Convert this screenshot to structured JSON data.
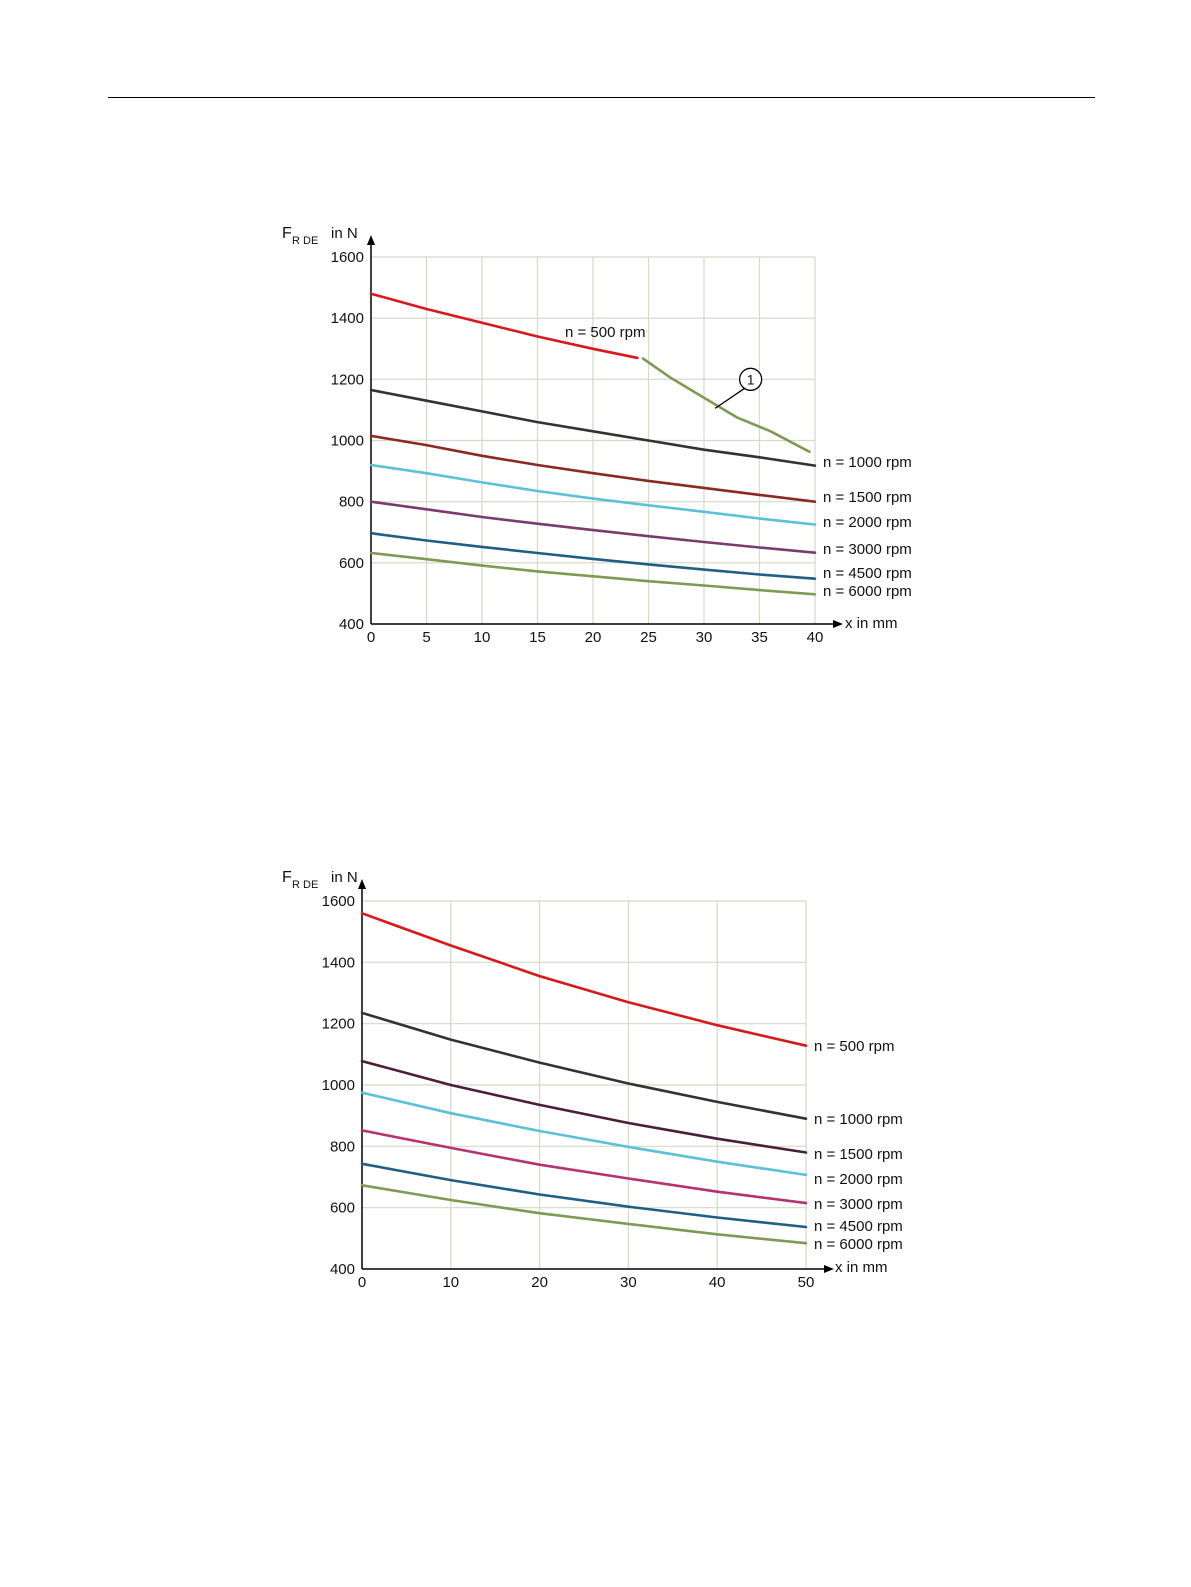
{
  "chart_data": [
    {
      "type": "line",
      "ylabel_main": "F",
      "ylabel_sub": "R DE",
      "ylabel_unit": "in N",
      "xlabel": "x in mm",
      "xlim": [
        0,
        40
      ],
      "ylim": [
        400,
        1600
      ],
      "x_ticks": [
        0,
        5,
        10,
        15,
        20,
        25,
        30,
        35,
        40
      ],
      "y_ticks": [
        400,
        600,
        800,
        1000,
        1200,
        1400,
        1600
      ],
      "grid": true,
      "series": [
        {
          "name": "n = 500 rpm",
          "color": "#d7191c",
          "label_pos": "inline",
          "x": [
            0,
            5,
            10,
            15,
            20,
            24
          ],
          "y": [
            1480,
            1430,
            1385,
            1340,
            1300,
            1270
          ]
        },
        {
          "name": "n = 1000 rpm",
          "color": "#333333",
          "label_pos": "end",
          "x": [
            0,
            5,
            10,
            15,
            20,
            25,
            30,
            35,
            40
          ],
          "y": [
            1165,
            1130,
            1095,
            1060,
            1030,
            1000,
            970,
            945,
            918
          ]
        },
        {
          "name": "n = 1500 rpm",
          "color": "#8b2a22",
          "label_pos": "end",
          "x": [
            0,
            5,
            10,
            15,
            20,
            25,
            30,
            35,
            40
          ],
          "y": [
            1015,
            985,
            950,
            920,
            893,
            868,
            845,
            822,
            800
          ]
        },
        {
          "name": "n = 2000 rpm",
          "color": "#5bc0d8",
          "label_pos": "end",
          "x": [
            0,
            5,
            10,
            15,
            20,
            25,
            30,
            35,
            40
          ],
          "y": [
            920,
            893,
            863,
            835,
            810,
            788,
            767,
            745,
            725
          ]
        },
        {
          "name": "n = 3000 rpm",
          "color": "#7a3b6e",
          "label_pos": "end",
          "x": [
            0,
            5,
            10,
            15,
            20,
            25,
            30,
            35,
            40
          ],
          "y": [
            800,
            775,
            750,
            728,
            707,
            687,
            668,
            650,
            633
          ]
        },
        {
          "name": "n = 4500 rpm",
          "color": "#1f5f86",
          "label_pos": "end",
          "x": [
            0,
            5,
            10,
            15,
            20,
            25,
            30,
            35,
            40
          ],
          "y": [
            697,
            673,
            652,
            632,
            613,
            595,
            578,
            562,
            548
          ]
        },
        {
          "name": "n = 6000 rpm",
          "color": "#7f9a55",
          "label_pos": "end",
          "x": [
            0,
            5,
            10,
            15,
            20,
            25,
            30,
            35,
            40
          ],
          "y": [
            632,
            612,
            591,
            572,
            556,
            540,
            526,
            511,
            497
          ]
        },
        {
          "name": "",
          "color": "#7f9a55",
          "label_pos": "none",
          "x": [
            24.5,
            27,
            30,
            33,
            36,
            39.5
          ],
          "y": [
            1268,
            1205,
            1140,
            1075,
            1030,
            963
          ]
        }
      ],
      "annotations": [
        {
          "text": "1",
          "x": 34.2,
          "y": 1200,
          "target_x": 31,
          "target_y": 1105
        }
      ]
    },
    {
      "type": "line",
      "ylabel_main": "F",
      "ylabel_sub": "R DE",
      "ylabel_unit": "in N",
      "xlabel": "x in mm",
      "xlim": [
        0,
        50
      ],
      "ylim": [
        400,
        1600
      ],
      "x_ticks": [
        0,
        10,
        20,
        30,
        40,
        50
      ],
      "y_ticks": [
        400,
        600,
        800,
        1000,
        1200,
        1400,
        1600
      ],
      "grid": true,
      "series": [
        {
          "name": "n = 500 rpm",
          "color": "#d7191c",
          "label_pos": "end",
          "x": [
            0,
            10,
            20,
            30,
            40,
            50
          ],
          "y": [
            1560,
            1455,
            1355,
            1270,
            1195,
            1128
          ]
        },
        {
          "name": "n = 1000 rpm",
          "color": "#333333",
          "label_pos": "end",
          "x": [
            0,
            10,
            20,
            30,
            40,
            50
          ],
          "y": [
            1235,
            1148,
            1073,
            1005,
            945,
            890
          ]
        },
        {
          "name": "n = 1500 rpm",
          "color": "#4a1f3a",
          "label_pos": "end",
          "x": [
            0,
            10,
            20,
            30,
            40,
            50
          ],
          "y": [
            1078,
            1000,
            935,
            876,
            825,
            780
          ]
        },
        {
          "name": "n = 2000 rpm",
          "color": "#5bc0d8",
          "label_pos": "end",
          "x": [
            0,
            10,
            20,
            30,
            40,
            50
          ],
          "y": [
            975,
            908,
            850,
            798,
            750,
            707
          ]
        },
        {
          "name": "n = 3000 rpm",
          "color": "#b5336e",
          "label_pos": "end",
          "x": [
            0,
            10,
            20,
            30,
            40,
            50
          ],
          "y": [
            852,
            795,
            740,
            695,
            652,
            615
          ]
        },
        {
          "name": "n = 4500 rpm",
          "color": "#1f5f86",
          "label_pos": "end",
          "x": [
            0,
            10,
            20,
            30,
            40,
            50
          ],
          "y": [
            743,
            690,
            643,
            603,
            568,
            537
          ]
        },
        {
          "name": "n = 6000 rpm",
          "color": "#7f9a55",
          "label_pos": "end",
          "x": [
            0,
            10,
            20,
            30,
            40,
            50
          ],
          "y": [
            673,
            625,
            582,
            547,
            513,
            484
          ]
        }
      ],
      "annotations": []
    }
  ]
}
